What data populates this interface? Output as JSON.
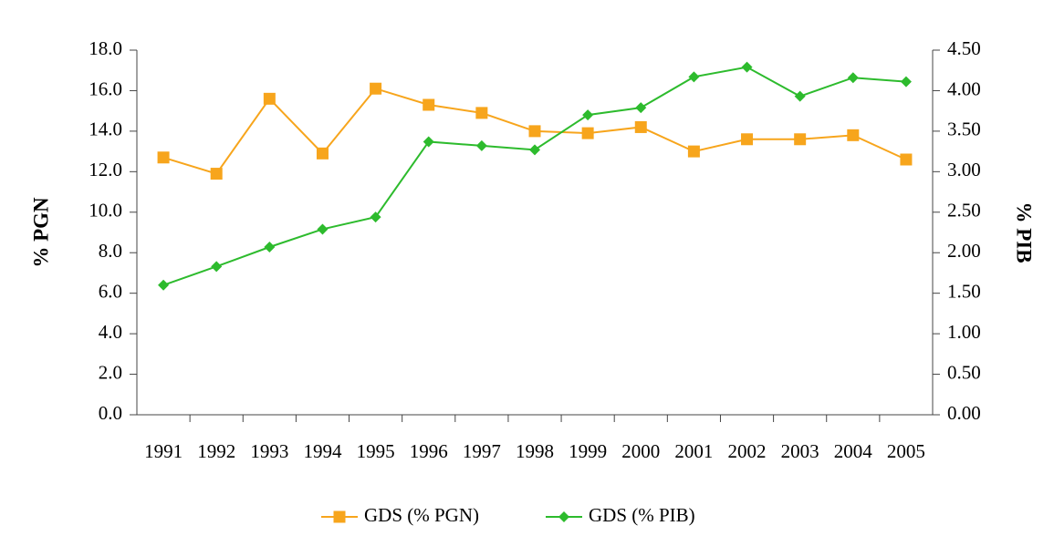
{
  "chart_data": {
    "type": "line",
    "categories": [
      "1991",
      "1992",
      "1993",
      "1994",
      "1995",
      "1996",
      "1997",
      "1998",
      "1999",
      "2000",
      "2001",
      "2002",
      "2003",
      "2004",
      "2005"
    ],
    "y_label": "% PGN",
    "y2_label": "% PIB",
    "ylim": [
      0,
      18
    ],
    "yticks": [
      {
        "value": 0,
        "label": "0.0"
      },
      {
        "value": 2,
        "label": "2.0"
      },
      {
        "value": 4,
        "label": "4.0"
      },
      {
        "value": 6,
        "label": "6.0"
      },
      {
        "value": 8,
        "label": "8.0"
      },
      {
        "value": 10,
        "label": "10.0"
      },
      {
        "value": 12,
        "label": "12.0"
      },
      {
        "value": 14,
        "label": "14.0"
      },
      {
        "value": 16,
        "label": "16.0"
      },
      {
        "value": 18,
        "label": "18.0"
      }
    ],
    "y2lim": [
      0,
      4.5
    ],
    "y2ticks": [
      {
        "value": 0,
        "label": "0.00"
      },
      {
        "value": 0.5,
        "label": "0.50"
      },
      {
        "value": 1,
        "label": "1.00"
      },
      {
        "value": 1.5,
        "label": "1.50"
      },
      {
        "value": 2,
        "label": "2.00"
      },
      {
        "value": 2.5,
        "label": "2.50"
      },
      {
        "value": 3,
        "label": "3.00"
      },
      {
        "value": 3.5,
        "label": "3.50"
      },
      {
        "value": 4,
        "label": "4.00"
      },
      {
        "value": 4.5,
        "label": "4.50"
      }
    ],
    "series": [
      {
        "name": "GDS (% PGN)",
        "color": "#f7a51c",
        "marker": "square",
        "values": [
          12.7,
          11.9,
          15.6,
          12.9,
          16.1,
          15.3,
          14.9,
          14.0,
          13.9,
          14.2,
          13.0,
          13.6,
          13.6,
          13.8,
          12.6
        ]
      },
      {
        "name": "GDS (% PIB)",
        "color": "#2dbb2d",
        "marker": "diamond",
        "axis": "y2",
        "values": [
          1.6,
          1.83,
          2.07,
          2.29,
          2.44,
          3.37,
          3.32,
          3.27,
          3.7,
          3.79,
          4.17,
          4.29,
          3.93,
          4.16,
          4.11
        ]
      }
    ]
  }
}
